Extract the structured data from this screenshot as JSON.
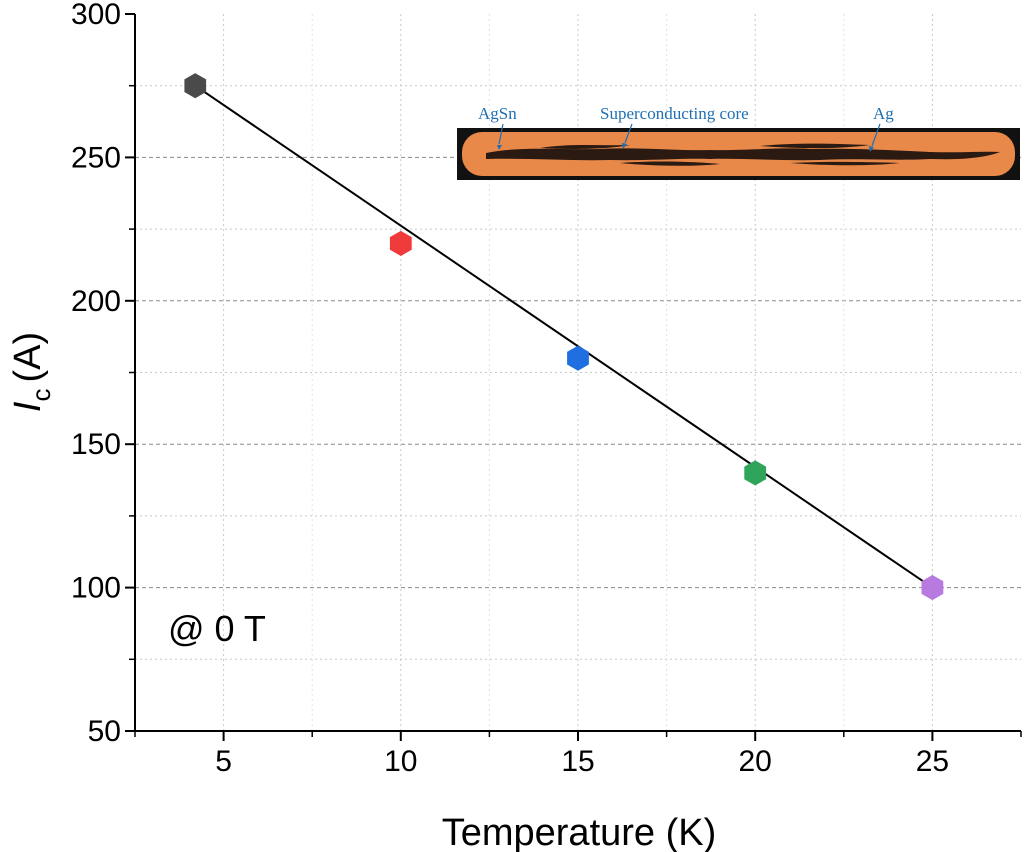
{
  "chart_data": {
    "type": "scatter",
    "title": "",
    "xlabel": "Temperature (K)",
    "ylabel_main": "I",
    "ylabel_sub": "c",
    "ylabel_unit": "(A)",
    "xlim": [
      2.5,
      27.5
    ],
    "ylim": [
      50,
      300
    ],
    "xticks": [
      5,
      10,
      15,
      20,
      25
    ],
    "yticks": [
      50,
      100,
      150,
      200,
      250,
      300
    ],
    "grid": true,
    "marker": "hexagon",
    "fit_line": true,
    "points": [
      {
        "x": 4.2,
        "y": 275,
        "color": "#4a4a4a"
      },
      {
        "x": 10,
        "y": 220,
        "color": "#ef3b3b"
      },
      {
        "x": 15,
        "y": 180,
        "color": "#1f6fe0"
      },
      {
        "x": 20,
        "y": 140,
        "color": "#2ea55a"
      },
      {
        "x": 25,
        "y": 100,
        "color": "#b77be0"
      }
    ],
    "annotation": "@  0 T",
    "inset": {
      "description_labels": [
        "AgSn",
        "Superconducting core",
        "Ag"
      ],
      "colors": {
        "sheath": "#e8894a",
        "core": "#2b1a12",
        "background": "#111111"
      }
    }
  }
}
